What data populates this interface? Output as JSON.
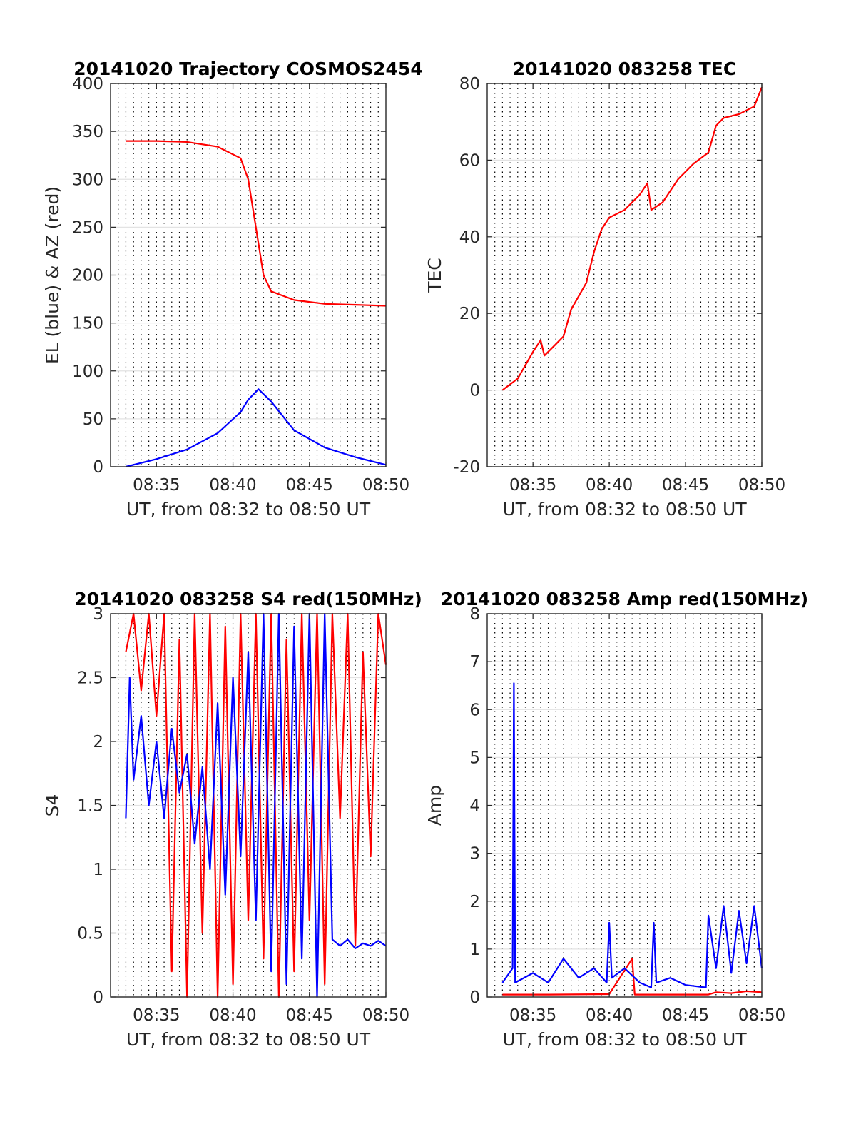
{
  "chart_data": [
    {
      "type": "line",
      "title": "20141020 Trajectory COSMOS2454",
      "xlabel": "UT, from 08:32 to 08:50 UT",
      "ylabel": "EL (blue) & AZ (red)",
      "x_range": [
        "08:32",
        "08:50"
      ],
      "xticks": [
        "08:35",
        "08:40",
        "08:45",
        "08:50"
      ],
      "ylim": [
        0,
        400
      ],
      "yticks": [
        "0",
        "50",
        "100",
        "150",
        "200",
        "250",
        "300",
        "350",
        "400"
      ],
      "grid": "dotted vertical every 30 s, horizontal at y ticks",
      "series": [
        {
          "color": "#ff0000",
          "points": [
            [
              "08:33:00",
              340
            ],
            [
              "08:35:00",
              340
            ],
            [
              "08:37:00",
              339
            ],
            [
              "08:39:00",
              334
            ],
            [
              "08:40:30",
              322
            ],
            [
              "08:41:00",
              300
            ],
            [
              "08:41:30",
              250
            ],
            [
              "08:42:00",
              200
            ],
            [
              "08:42:30",
              183
            ],
            [
              "08:44:00",
              174
            ],
            [
              "08:46:00",
              170
            ],
            [
              "08:48:00",
              169
            ],
            [
              "08:50:00",
              168
            ]
          ]
        },
        {
          "color": "#0000ff",
          "points": [
            [
              "08:33:00",
              0
            ],
            [
              "08:35:00",
              8
            ],
            [
              "08:37:00",
              18
            ],
            [
              "08:39:00",
              35
            ],
            [
              "08:40:30",
              57
            ],
            [
              "08:41:00",
              70
            ],
            [
              "08:41:40",
              81
            ],
            [
              "08:42:30",
              68
            ],
            [
              "08:44:00",
              38
            ],
            [
              "08:46:00",
              20
            ],
            [
              "08:48:00",
              10
            ],
            [
              "08:50:00",
              2
            ]
          ]
        }
      ]
    },
    {
      "type": "line",
      "title": "20141020 083258 TEC",
      "xlabel": "UT, from 08:32 to 08:50 UT",
      "ylabel": "TEC",
      "x_range": [
        "08:32",
        "08:50"
      ],
      "xticks": [
        "08:35",
        "08:40",
        "08:45",
        "08:50"
      ],
      "ylim": [
        -20,
        80
      ],
      "yticks": [
        "-20",
        "0",
        "20",
        "40",
        "60",
        "80"
      ],
      "grid": "dotted vertical every 30 s, horizontal at y ticks",
      "series": [
        {
          "color": "#ff0000",
          "points": [
            [
              "08:33:00",
              0
            ],
            [
              "08:34:00",
              3
            ],
            [
              "08:35:00",
              10
            ],
            [
              "08:35:30",
              13
            ],
            [
              "08:35:45",
              9
            ],
            [
              "08:36:30",
              12
            ],
            [
              "08:37:00",
              14
            ],
            [
              "08:37:30",
              21
            ],
            [
              "08:38:30",
              28
            ],
            [
              "08:39:00",
              36
            ],
            [
              "08:39:30",
              42
            ],
            [
              "08:40:00",
              45
            ],
            [
              "08:41:00",
              47
            ],
            [
              "08:42:00",
              51
            ],
            [
              "08:42:30",
              54
            ],
            [
              "08:42:45",
              47
            ],
            [
              "08:43:30",
              49
            ],
            [
              "08:44:30",
              55
            ],
            [
              "08:45:30",
              59
            ],
            [
              "08:46:30",
              62
            ],
            [
              "08:47:00",
              69
            ],
            [
              "08:47:30",
              71
            ],
            [
              "08:48:30",
              72
            ],
            [
              "08:49:30",
              74
            ],
            [
              "08:50:00",
              79
            ]
          ]
        }
      ]
    },
    {
      "type": "line",
      "title": "20141020 083258 S4 red(150MHz)",
      "xlabel": "UT, from 08:32 to 08:50 UT",
      "ylabel": "S4",
      "x_range": [
        "08:32",
        "08:50"
      ],
      "xticks": [
        "08:35",
        "08:40",
        "08:45",
        "08:50"
      ],
      "ylim": [
        0,
        3
      ],
      "yticks": [
        "0",
        "0.5",
        "1",
        "1.5",
        "2",
        "2.5",
        "3"
      ],
      "grid": "dotted vertical every 30 s, horizontal at y ticks",
      "series": [
        {
          "color": "#ff0000",
          "points": [
            [
              "08:33:00",
              2.7
            ],
            [
              "08:33:30",
              3.0
            ],
            [
              "08:34:00",
              2.4
            ],
            [
              "08:34:30",
              3.0
            ],
            [
              "08:35:00",
              2.2
            ],
            [
              "08:35:30",
              3.0
            ],
            [
              "08:36:00",
              0.2
            ],
            [
              "08:36:30",
              2.8
            ],
            [
              "08:37:00",
              0.0
            ],
            [
              "08:37:30",
              3.0
            ],
            [
              "08:38:00",
              0.5
            ],
            [
              "08:38:30",
              3.0
            ],
            [
              "08:39:00",
              0.0
            ],
            [
              "08:39:30",
              2.9
            ],
            [
              "08:40:00",
              0.1
            ],
            [
              "08:40:30",
              3.0
            ],
            [
              "08:41:00",
              0.6
            ],
            [
              "08:41:30",
              3.0
            ],
            [
              "08:42:00",
              0.3
            ],
            [
              "08:42:30",
              3.0
            ],
            [
              "08:43:00",
              0.0
            ],
            [
              "08:43:30",
              2.8
            ],
            [
              "08:44:00",
              0.2
            ],
            [
              "08:44:30",
              3.0
            ],
            [
              "08:45:00",
              0.6
            ],
            [
              "08:45:30",
              3.0
            ],
            [
              "08:46:00",
              0.1
            ],
            [
              "08:46:30",
              3.0
            ],
            [
              "08:47:00",
              1.4
            ],
            [
              "08:47:30",
              3.0
            ],
            [
              "08:48:00",
              0.4
            ],
            [
              "08:48:30",
              2.7
            ],
            [
              "08:49:00",
              1.1
            ],
            [
              "08:49:30",
              3.0
            ],
            [
              "08:50:00",
              2.6
            ]
          ]
        },
        {
          "color": "#0000ff",
          "points": [
            [
              "08:33:00",
              1.4
            ],
            [
              "08:33:15",
              2.5
            ],
            [
              "08:33:30",
              1.7
            ],
            [
              "08:34:00",
              2.2
            ],
            [
              "08:34:30",
              1.5
            ],
            [
              "08:35:00",
              2.0
            ],
            [
              "08:35:30",
              1.4
            ],
            [
              "08:36:00",
              2.1
            ],
            [
              "08:36:30",
              1.6
            ],
            [
              "08:37:00",
              1.9
            ],
            [
              "08:37:30",
              1.2
            ],
            [
              "08:38:00",
              1.8
            ],
            [
              "08:38:30",
              1.0
            ],
            [
              "08:39:00",
              2.3
            ],
            [
              "08:39:30",
              0.8
            ],
            [
              "08:40:00",
              2.5
            ],
            [
              "08:40:30",
              1.1
            ],
            [
              "08:41:00",
              2.7
            ],
            [
              "08:41:30",
              0.6
            ],
            [
              "08:42:00",
              3.0
            ],
            [
              "08:42:30",
              0.2
            ],
            [
              "08:43:00",
              3.0
            ],
            [
              "08:43:30",
              0.1
            ],
            [
              "08:44:00",
              2.9
            ],
            [
              "08:44:30",
              0.3
            ],
            [
              "08:45:00",
              3.0
            ],
            [
              "08:45:30",
              0.0
            ],
            [
              "08:46:00",
              3.0
            ],
            [
              "08:46:30",
              0.45
            ],
            [
              "08:47:00",
              0.4
            ],
            [
              "08:47:30",
              0.45
            ],
            [
              "08:48:00",
              0.38
            ],
            [
              "08:48:30",
              0.42
            ],
            [
              "08:49:00",
              0.4
            ],
            [
              "08:49:30",
              0.44
            ],
            [
              "08:50:00",
              0.4
            ]
          ]
        }
      ]
    },
    {
      "type": "line",
      "title": "20141020 083258 Amp red(150MHz)",
      "xlabel": "UT, from 08:32 to 08:50 UT",
      "ylabel": "Amp",
      "x_range": [
        "08:32",
        "08:50"
      ],
      "xticks": [
        "08:35",
        "08:40",
        "08:45",
        "08:50"
      ],
      "ylim": [
        0,
        8
      ],
      "yticks": [
        "0",
        "1",
        "2",
        "3",
        "4",
        "5",
        "6",
        "7",
        "8"
      ],
      "grid": "dotted vertical every 30 s, horizontal at y ticks",
      "series": [
        {
          "color": "#ff0000",
          "points": [
            [
              "08:33:00",
              0.05
            ],
            [
              "08:36:00",
              0.05
            ],
            [
              "08:40:00",
              0.06
            ],
            [
              "08:41:30",
              0.8
            ],
            [
              "08:41:40",
              0.05
            ],
            [
              "08:44:00",
              0.05
            ],
            [
              "08:46:30",
              0.05
            ],
            [
              "08:47:00",
              0.1
            ],
            [
              "08:48:00",
              0.08
            ],
            [
              "08:49:00",
              0.12
            ],
            [
              "08:50:00",
              0.1
            ]
          ]
        },
        {
          "color": "#0000ff",
          "points": [
            [
              "08:33:00",
              0.3
            ],
            [
              "08:33:40",
              0.6
            ],
            [
              "08:33:45",
              6.55
            ],
            [
              "08:33:50",
              0.3
            ],
            [
              "08:35:00",
              0.5
            ],
            [
              "08:36:00",
              0.3
            ],
            [
              "08:37:00",
              0.8
            ],
            [
              "08:38:00",
              0.4
            ],
            [
              "08:39:00",
              0.6
            ],
            [
              "08:39:50",
              0.3
            ],
            [
              "08:40:00",
              1.55
            ],
            [
              "08:40:10",
              0.4
            ],
            [
              "08:41:00",
              0.6
            ],
            [
              "08:42:00",
              0.3
            ],
            [
              "08:42:45",
              0.2
            ],
            [
              "08:42:55",
              1.55
            ],
            [
              "08:43:05",
              0.3
            ],
            [
              "08:44:00",
              0.4
            ],
            [
              "08:45:00",
              0.25
            ],
            [
              "08:46:20",
              0.2
            ],
            [
              "08:46:30",
              1.7
            ],
            [
              "08:47:00",
              0.6
            ],
            [
              "08:47:30",
              1.9
            ],
            [
              "08:48:00",
              0.5
            ],
            [
              "08:48:30",
              1.8
            ],
            [
              "08:49:00",
              0.7
            ],
            [
              "08:49:30",
              1.9
            ],
            [
              "08:50:00",
              0.6
            ]
          ]
        }
      ]
    }
  ]
}
